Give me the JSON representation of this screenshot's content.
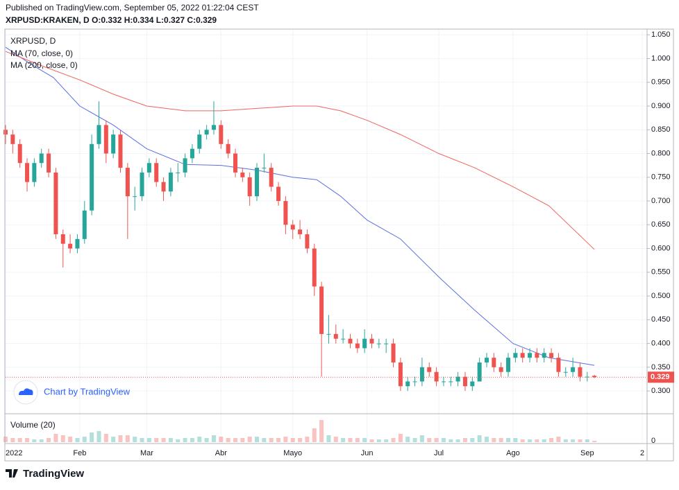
{
  "header": {
    "published": "Published on TradingView.com, September 05, 2022 01:22:04 CEST",
    "symbol_line": "XRPUSD:KRAKEN, D  O:0.332 H:0.334 L:0.327 C:0.329"
  },
  "chart_data": {
    "type": "candlestick",
    "title": "XRPUSD, D",
    "up_color": "#26a69a",
    "down_color": "#ef5350",
    "x": [
      0,
      3,
      6,
      9,
      12,
      15,
      18,
      21,
      24,
      27,
      30,
      33,
      36,
      39,
      42,
      45,
      48,
      51,
      54,
      57,
      60,
      63,
      66,
      69,
      72,
      75,
      78,
      81,
      84,
      87,
      90,
      93,
      96,
      99,
      102,
      105,
      108,
      111,
      114,
      117,
      120,
      123,
      126,
      129,
      132,
      135,
      138,
      141,
      144,
      147,
      150,
      153,
      156,
      159,
      162,
      165,
      168,
      171,
      174,
      177,
      180,
      183,
      186,
      189,
      192,
      195,
      198,
      201,
      204,
      207,
      210,
      213,
      216,
      219,
      222,
      225,
      228,
      231,
      234,
      237,
      240,
      243,
      246
    ],
    "ohlc": [
      [
        0.85,
        0.86,
        0.82,
        0.84
      ],
      [
        0.84,
        0.85,
        0.8,
        0.82
      ],
      [
        0.82,
        0.83,
        0.77,
        0.78
      ],
      [
        0.78,
        0.79,
        0.72,
        0.74
      ],
      [
        0.74,
        0.79,
        0.73,
        0.78
      ],
      [
        0.78,
        0.81,
        0.77,
        0.8
      ],
      [
        0.8,
        0.81,
        0.75,
        0.76
      ],
      [
        0.76,
        0.77,
        0.62,
        0.63
      ],
      [
        0.63,
        0.64,
        0.56,
        0.61
      ],
      [
        0.61,
        0.63,
        0.59,
        0.6
      ],
      [
        0.6,
        0.63,
        0.59,
        0.62
      ],
      [
        0.62,
        0.7,
        0.61,
        0.68
      ],
      [
        0.68,
        0.84,
        0.67,
        0.82
      ],
      [
        0.82,
        0.91,
        0.81,
        0.86
      ],
      [
        0.86,
        0.87,
        0.78,
        0.8
      ],
      [
        0.8,
        0.85,
        0.79,
        0.84
      ],
      [
        0.84,
        0.85,
        0.76,
        0.77
      ],
      [
        0.77,
        0.78,
        0.62,
        0.71
      ],
      [
        0.71,
        0.73,
        0.68,
        0.71
      ],
      [
        0.71,
        0.77,
        0.7,
        0.76
      ],
      [
        0.76,
        0.79,
        0.75,
        0.78
      ],
      [
        0.78,
        0.79,
        0.73,
        0.74
      ],
      [
        0.74,
        0.75,
        0.7,
        0.72
      ],
      [
        0.72,
        0.77,
        0.71,
        0.76
      ],
      [
        0.76,
        0.78,
        0.74,
        0.76
      ],
      [
        0.76,
        0.8,
        0.75,
        0.79
      ],
      [
        0.79,
        0.82,
        0.78,
        0.81
      ],
      [
        0.81,
        0.85,
        0.8,
        0.84
      ],
      [
        0.84,
        0.86,
        0.83,
        0.85
      ],
      [
        0.85,
        0.91,
        0.84,
        0.86
      ],
      [
        0.86,
        0.87,
        0.81,
        0.82
      ],
      [
        0.82,
        0.83,
        0.79,
        0.8
      ],
      [
        0.8,
        0.81,
        0.75,
        0.76
      ],
      [
        0.76,
        0.77,
        0.74,
        0.75
      ],
      [
        0.75,
        0.76,
        0.69,
        0.71
      ],
      [
        0.71,
        0.78,
        0.7,
        0.77
      ],
      [
        0.77,
        0.8,
        0.76,
        0.77
      ],
      [
        0.77,
        0.78,
        0.72,
        0.73
      ],
      [
        0.73,
        0.74,
        0.69,
        0.7
      ],
      [
        0.7,
        0.71,
        0.63,
        0.65
      ],
      [
        0.65,
        0.66,
        0.62,
        0.64
      ],
      [
        0.64,
        0.66,
        0.62,
        0.63
      ],
      [
        0.63,
        0.64,
        0.59,
        0.6
      ],
      [
        0.6,
        0.61,
        0.5,
        0.52
      ],
      [
        0.52,
        0.53,
        0.33,
        0.42
      ],
      [
        0.42,
        0.46,
        0.4,
        0.42
      ],
      [
        0.42,
        0.44,
        0.4,
        0.41
      ],
      [
        0.41,
        0.43,
        0.4,
        0.41
      ],
      [
        0.41,
        0.42,
        0.39,
        0.4
      ],
      [
        0.4,
        0.41,
        0.38,
        0.39
      ],
      [
        0.39,
        0.43,
        0.38,
        0.41
      ],
      [
        0.41,
        0.42,
        0.39,
        0.4
      ],
      [
        0.4,
        0.41,
        0.39,
        0.4
      ],
      [
        0.4,
        0.41,
        0.38,
        0.4
      ],
      [
        0.4,
        0.41,
        0.35,
        0.36
      ],
      [
        0.36,
        0.37,
        0.3,
        0.31
      ],
      [
        0.31,
        0.33,
        0.3,
        0.32
      ],
      [
        0.32,
        0.33,
        0.31,
        0.32
      ],
      [
        0.32,
        0.37,
        0.31,
        0.35
      ],
      [
        0.35,
        0.36,
        0.33,
        0.34
      ],
      [
        0.34,
        0.35,
        0.31,
        0.32
      ],
      [
        0.32,
        0.33,
        0.31,
        0.32
      ],
      [
        0.32,
        0.33,
        0.31,
        0.32
      ],
      [
        0.32,
        0.34,
        0.31,
        0.33
      ],
      [
        0.33,
        0.34,
        0.3,
        0.31
      ],
      [
        0.31,
        0.33,
        0.3,
        0.32
      ],
      [
        0.32,
        0.37,
        0.32,
        0.36
      ],
      [
        0.36,
        0.38,
        0.35,
        0.37
      ],
      [
        0.37,
        0.38,
        0.34,
        0.35
      ],
      [
        0.35,
        0.36,
        0.33,
        0.34
      ],
      [
        0.34,
        0.38,
        0.33,
        0.37
      ],
      [
        0.37,
        0.39,
        0.36,
        0.38
      ],
      [
        0.38,
        0.39,
        0.36,
        0.37
      ],
      [
        0.37,
        0.39,
        0.36,
        0.38
      ],
      [
        0.38,
        0.39,
        0.36,
        0.37
      ],
      [
        0.37,
        0.39,
        0.36,
        0.38
      ],
      [
        0.38,
        0.39,
        0.36,
        0.37
      ],
      [
        0.37,
        0.38,
        0.33,
        0.34
      ],
      [
        0.34,
        0.35,
        0.33,
        0.34
      ],
      [
        0.34,
        0.37,
        0.33,
        0.35
      ],
      [
        0.35,
        0.36,
        0.32,
        0.33
      ],
      [
        0.33,
        0.34,
        0.32,
        0.33
      ],
      [
        0.332,
        0.334,
        0.327,
        0.329
      ]
    ],
    "series": [
      {
        "name": "MA (70, close, 0)",
        "color": "#5b6ee1",
        "x": [
          0,
          10,
          20,
          31,
          45,
          59,
          75,
          90,
          105,
          120,
          130,
          140,
          151,
          165,
          181,
          196,
          212,
          227,
          246
        ],
        "values": [
          1.024,
          0.99,
          0.96,
          0.9,
          0.86,
          0.81,
          0.777,
          0.775,
          0.765,
          0.75,
          0.745,
          0.71,
          0.66,
          0.62,
          0.54,
          0.47,
          0.4,
          0.37,
          0.354
        ]
      },
      {
        "name": "MA (200, close, 0)",
        "color": "#f0625d",
        "x": [
          0,
          15,
          31,
          45,
          59,
          75,
          90,
          105,
          120,
          130,
          140,
          151,
          165,
          181,
          196,
          212,
          227,
          246
        ],
        "values": [
          1.015,
          0.985,
          0.955,
          0.925,
          0.9,
          0.89,
          0.89,
          0.895,
          0.9,
          0.9,
          0.89,
          0.87,
          0.84,
          0.8,
          0.77,
          0.73,
          0.69,
          0.598
        ]
      }
    ],
    "last_price": 0.329,
    "last_price_color": "#ef5350",
    "xlim": [
      0,
      268
    ],
    "xticks": [
      {
        "value": 0,
        "label": "2022"
      },
      {
        "value": 31,
        "label": "Feb"
      },
      {
        "value": 59,
        "label": "Mar"
      },
      {
        "value": 90,
        "label": "Abr"
      },
      {
        "value": 120,
        "label": "Mayo"
      },
      {
        "value": 151,
        "label": "Jun"
      },
      {
        "value": 181,
        "label": "Jul"
      },
      {
        "value": 212,
        "label": "Ago"
      },
      {
        "value": 243,
        "label": "Sep"
      },
      {
        "value": 266,
        "label": "2"
      }
    ],
    "ylim": [
      0.252,
      1.062
    ],
    "yticks": [
      {
        "value": 0.3,
        "label": "0.300"
      },
      {
        "value": 0.35,
        "label": "0.350"
      },
      {
        "value": 0.4,
        "label": "0.400"
      },
      {
        "value": 0.45,
        "label": "0.450"
      },
      {
        "value": 0.5,
        "label": "0.500"
      },
      {
        "value": 0.55,
        "label": "0.550"
      },
      {
        "value": 0.6,
        "label": "0.600"
      },
      {
        "value": 0.65,
        "label": "0.650"
      },
      {
        "value": 0.7,
        "label": "0.700"
      },
      {
        "value": 0.75,
        "label": "0.750"
      },
      {
        "value": 0.8,
        "label": "0.800"
      },
      {
        "value": 0.85,
        "label": "0.850"
      },
      {
        "value": 0.9,
        "label": "0.900"
      },
      {
        "value": 0.95,
        "label": "0.950"
      },
      {
        "value": 1.0,
        "label": "1.000"
      },
      {
        "value": 1.05,
        "label": "1.050"
      }
    ],
    "grid": true,
    "volume": {
      "title": "Volume (20)",
      "values": [
        2,
        1.5,
        1.5,
        1.5,
        1,
        1,
        1.5,
        3,
        2.5,
        2,
        1.5,
        2,
        3.5,
        4,
        3,
        2,
        2.5,
        2.5,
        2,
        1.5,
        1.5,
        1.5,
        1.5,
        1.5,
        1,
        1.5,
        1.5,
        2,
        1.5,
        2.5,
        2,
        1.5,
        1.5,
        1.5,
        2,
        2,
        1.5,
        1.5,
        1.5,
        2,
        1.5,
        1.5,
        2,
        5,
        8,
        2.5,
        2,
        1.5,
        1.5,
        1.5,
        1.5,
        1,
        1,
        1,
        1.5,
        3,
        2,
        1.5,
        2.5,
        1.5,
        1.5,
        1.5,
        1,
        1,
        1.5,
        1.5,
        2.5,
        2,
        1.5,
        1.5,
        1.5,
        1.5,
        1,
        1,
        1,
        1,
        1.5,
        2,
        1,
        1,
        1,
        1,
        0.5
      ],
      "ylim": [
        0,
        10
      ],
      "yticks": [
        0
      ]
    }
  },
  "watermark": "Chart by TradingView",
  "brand": "TradingView"
}
